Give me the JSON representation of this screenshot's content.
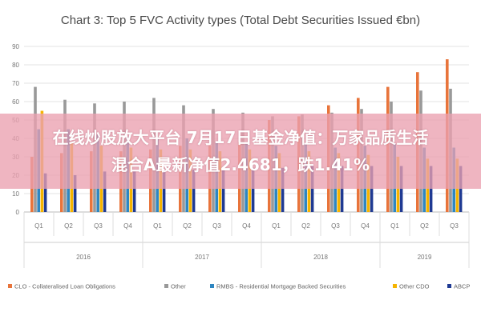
{
  "chart_data": {
    "type": "bar",
    "title": "Chart 3: Top 5 FVC Activity types (Total Debt Securities Issued €bn)",
    "xlabel": "",
    "ylabel": "",
    "ylim": [
      0,
      90
    ],
    "yticks": [
      0,
      10,
      20,
      30,
      40,
      50,
      60,
      70,
      80,
      90
    ],
    "grid": true,
    "legend_position": "bottom",
    "categories": [
      "Q1",
      "Q2",
      "Q3",
      "Q4",
      "Q1",
      "Q2",
      "Q3",
      "Q4",
      "Q1",
      "Q2",
      "Q3",
      "Q4",
      "Q1",
      "Q2",
      "Q3"
    ],
    "groups": [
      {
        "label": "2016",
        "start": 0,
        "count": 4
      },
      {
        "label": "2017",
        "start": 4,
        "count": 4
      },
      {
        "label": "2018",
        "start": 8,
        "count": 4
      },
      {
        "label": "2019",
        "start": 12,
        "count": 3
      }
    ],
    "series": [
      {
        "name": "CLO - Collateralised Loan Obligations",
        "color": "#e8743b",
        "values": [
          30,
          32,
          33,
          33,
          34,
          36,
          36,
          38,
          50,
          52,
          58,
          62,
          68,
          76,
          83
        ]
      },
      {
        "name": "Other",
        "color": "#999999",
        "values": [
          68,
          61,
          59,
          60,
          62,
          58,
          56,
          54,
          52,
          53,
          54,
          56,
          60,
          66,
          67
        ]
      },
      {
        "name": "RMBS - Residential Mortgage Backed Securities",
        "color": "#2e86c1",
        "values": [
          45,
          45,
          42,
          41,
          40,
          40,
          38,
          37,
          36,
          37,
          35,
          36,
          37,
          35,
          35
        ]
      },
      {
        "name": "Other CDO",
        "color": "#f5b400",
        "values": [
          55,
          38,
          36,
          35,
          34,
          34,
          33,
          34,
          32,
          33,
          32,
          31,
          30,
          29,
          29
        ]
      },
      {
        "name": "ABCP",
        "color": "#1f3a93",
        "values": [
          21,
          20,
          22,
          22,
          23,
          23,
          24,
          24,
          24,
          25,
          25,
          25,
          25,
          25,
          25
        ]
      }
    ]
  },
  "banner": {
    "line1": "在线炒股放大平台 7月17日基金净值：万家品质生活",
    "line2": "混合A最新净值2.4681，跌1.41%"
  }
}
